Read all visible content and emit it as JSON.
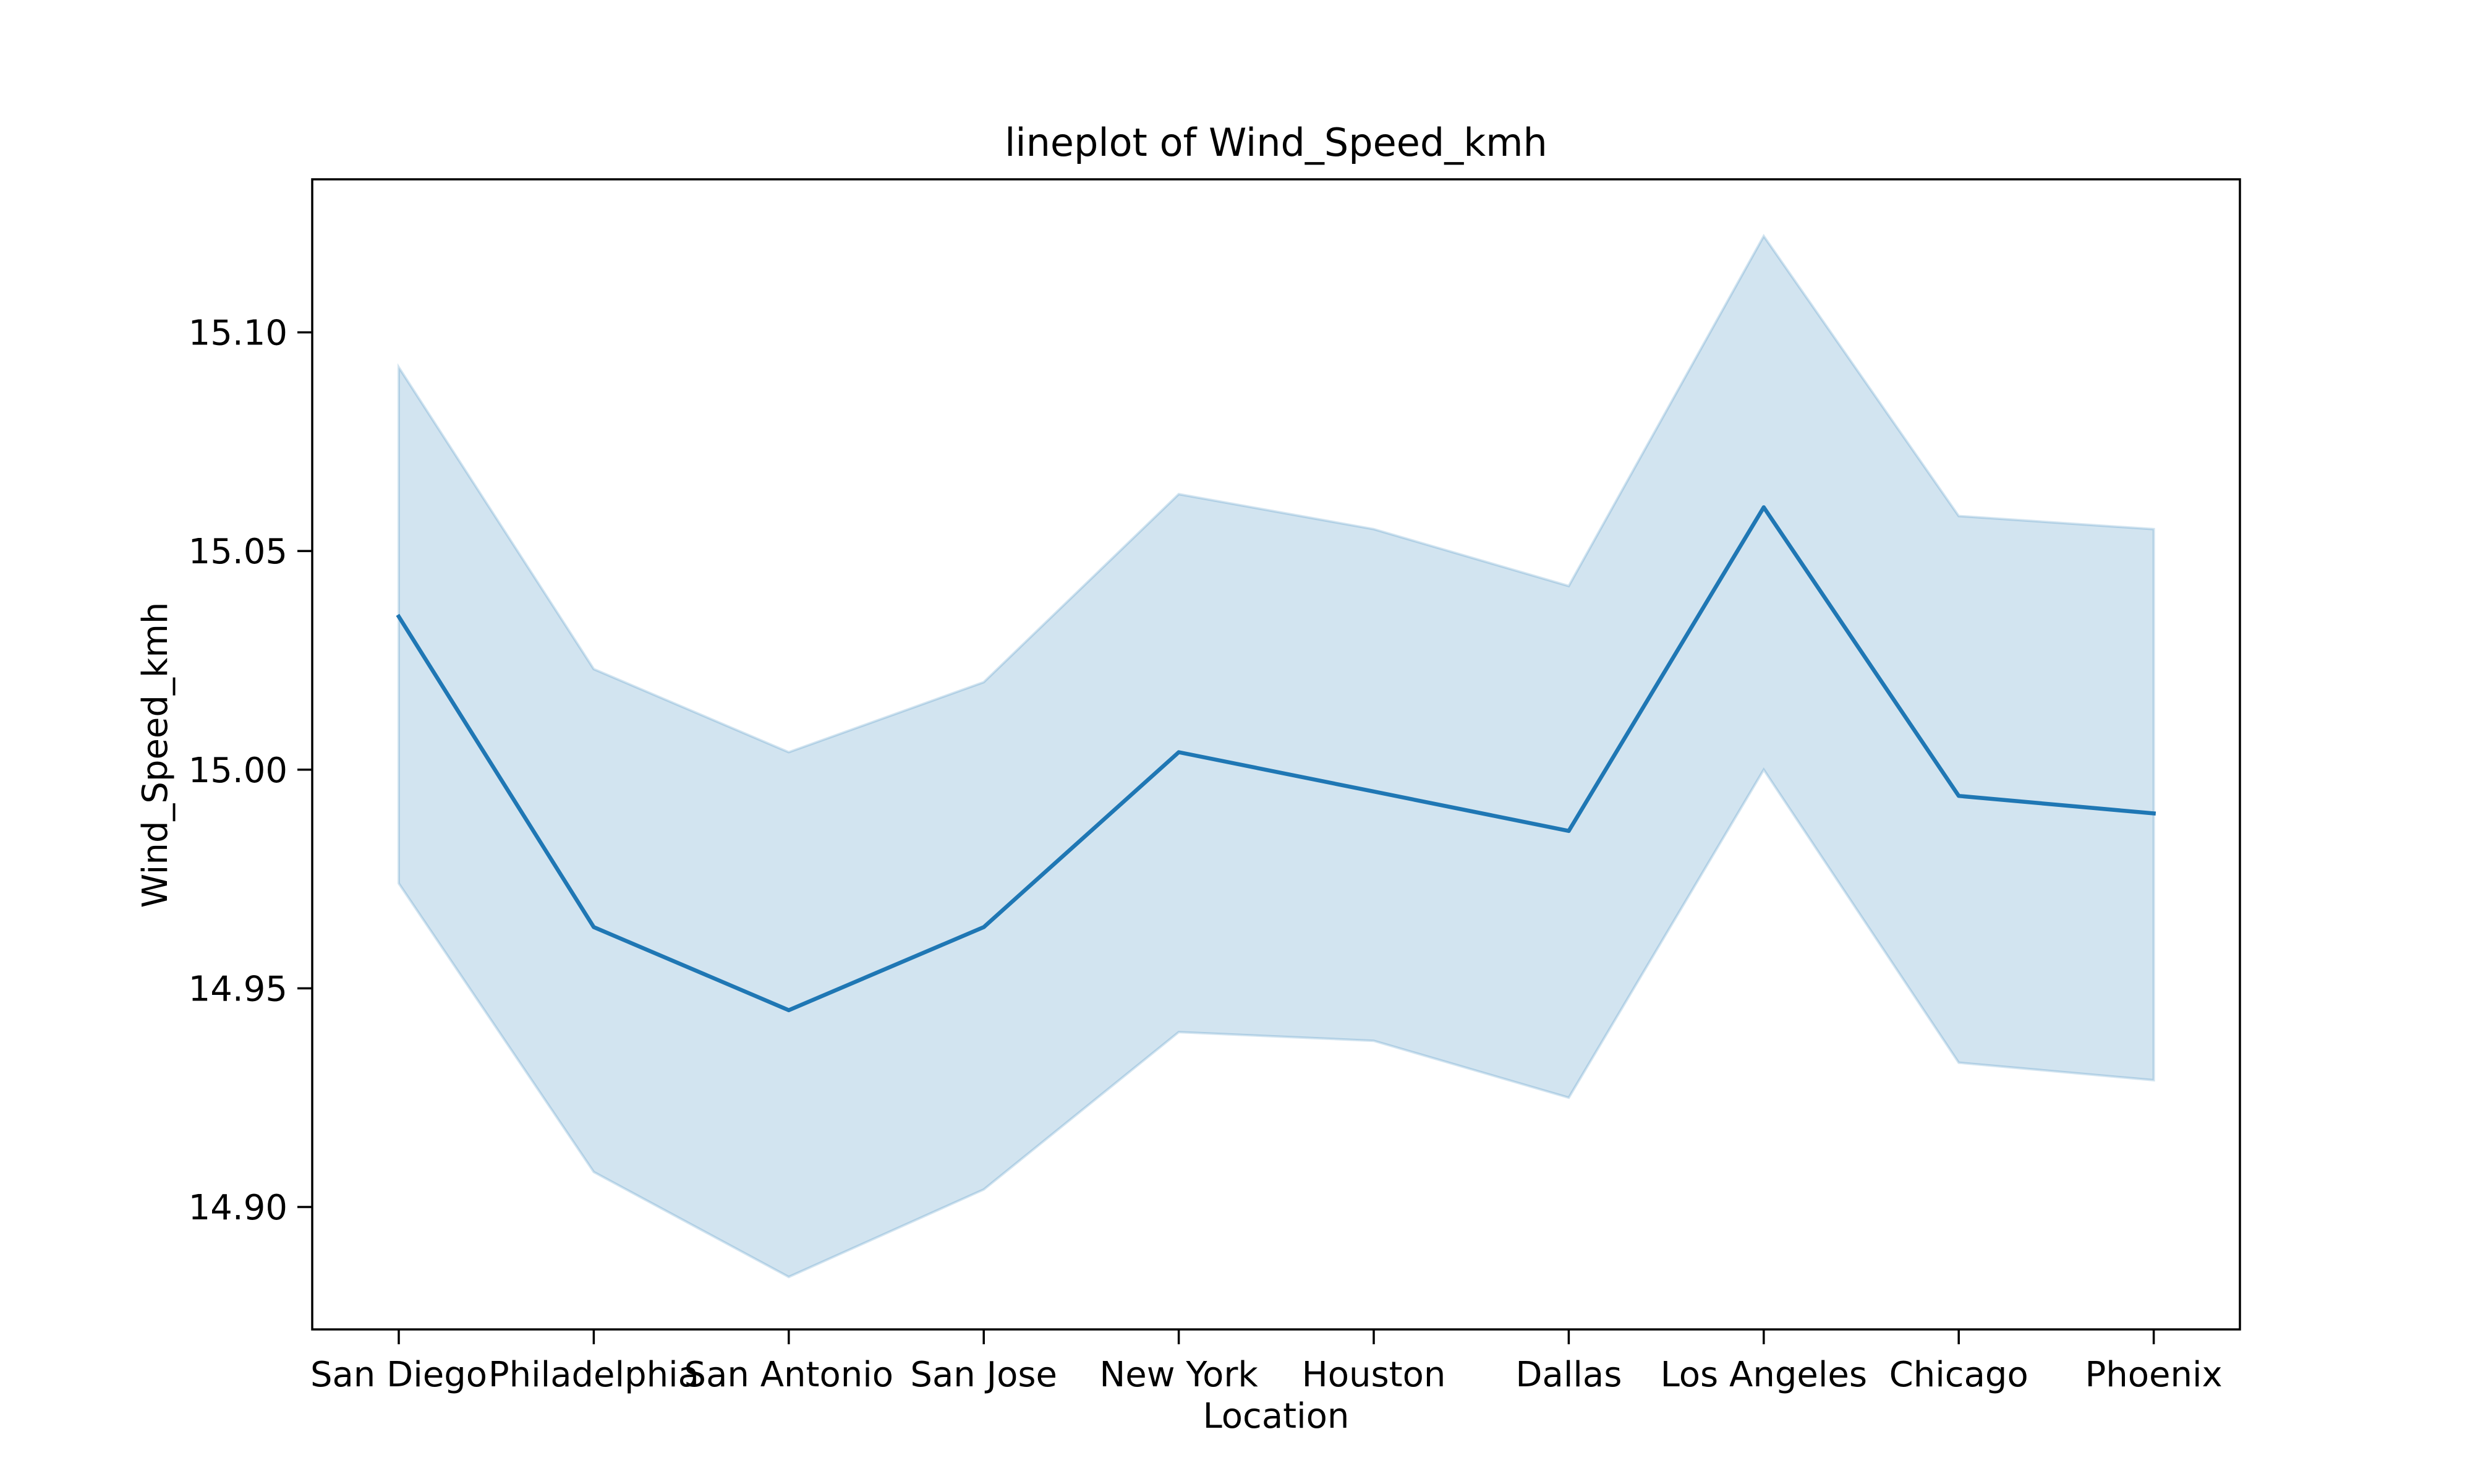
{
  "chart_data": {
    "type": "line",
    "title": "lineplot of Wind_Speed_kmh",
    "xlabel": "Location",
    "ylabel": "Wind_Speed_kmh",
    "categories": [
      "San Diego",
      "Philadelphia",
      "San Antonio",
      "San Jose",
      "New York",
      "Houston",
      "Dallas",
      "Los Angeles",
      "Chicago",
      "Phoenix"
    ],
    "series": [
      {
        "values": [
          15.035,
          14.964,
          14.945,
          14.964,
          15.004,
          14.995,
          14.986,
          15.06,
          14.994,
          14.99
        ],
        "ci_lower": [
          14.974,
          14.908,
          14.884,
          14.904,
          14.94,
          14.938,
          14.925,
          15.0,
          14.933,
          14.929
        ],
        "ci_upper": [
          15.092,
          15.023,
          15.004,
          15.02,
          15.063,
          15.055,
          15.042,
          15.122,
          15.058,
          15.055
        ]
      }
    ],
    "yticks": [
      "14.90",
      "14.95",
      "15.00",
      "15.05",
      "15.10"
    ],
    "ylim": [
      14.872,
      15.135
    ],
    "grid": false,
    "colors": {
      "line": "#1f77b4",
      "band": "#1f77b4"
    }
  }
}
